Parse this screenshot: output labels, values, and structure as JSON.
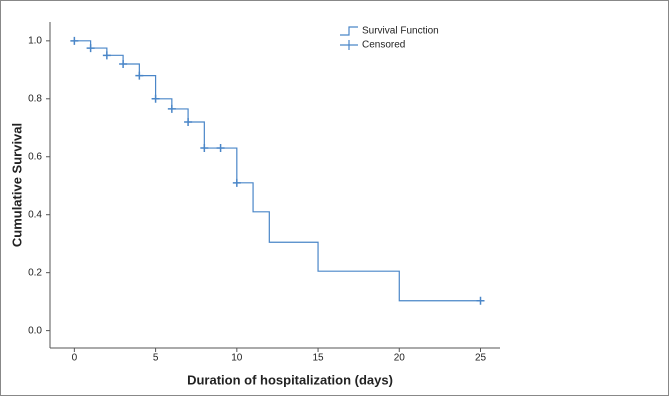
{
  "chart_data": {
    "type": "survival",
    "x_label": "Duration of hospitalization (days)",
    "y_label": "Cumulative Survival",
    "xlim": [
      -1.5,
      26.2
    ],
    "ylim": [
      -0.06,
      1.065
    ],
    "xticks": [
      0,
      5,
      10,
      15,
      20,
      25
    ],
    "yticks": [
      {
        "value": 0,
        "label": "0.0"
      },
      {
        "value": 0.2,
        "label": "0.2"
      },
      {
        "value": 0.4,
        "label": "0.4"
      },
      {
        "value": 0.6,
        "label": "0.6"
      },
      {
        "value": 0.8,
        "label": "0.8"
      },
      {
        "value": 1,
        "label": "1.0"
      }
    ],
    "legend_position": "top",
    "series": [
      {
        "name": "Survival Function",
        "color": "#4a86c8",
        "drawstyle": "steps-post",
        "x": [
          0,
          1,
          2,
          3,
          4,
          5,
          6,
          7,
          8,
          10,
          11,
          12,
          15,
          20,
          25
        ],
        "values": [
          1.0,
          0.975,
          0.95,
          0.92,
          0.88,
          0.8,
          0.765,
          0.72,
          0.63,
          0.51,
          0.41,
          0.305,
          0.205,
          0.103,
          0.103
        ]
      },
      {
        "name": "Censored",
        "color": "#4a86c8",
        "marker": "plus",
        "x": [
          0,
          1,
          2,
          3,
          4,
          5,
          6,
          7,
          8,
          9,
          10,
          25
        ],
        "values": [
          1.0,
          0.975,
          0.95,
          0.92,
          0.88,
          0.8,
          0.765,
          0.72,
          0.63,
          0.63,
          0.51,
          0.103
        ]
      }
    ]
  }
}
